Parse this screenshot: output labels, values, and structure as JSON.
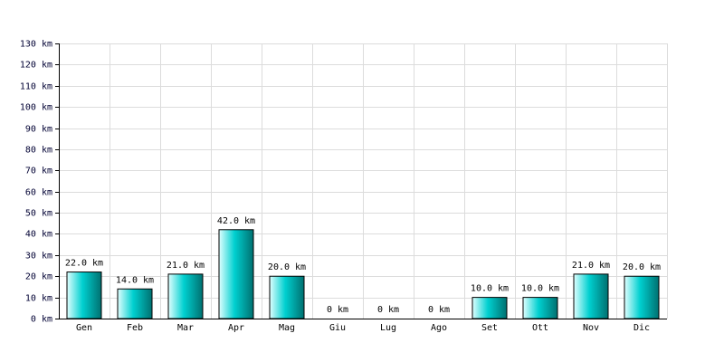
{
  "chart_data": {
    "type": "bar",
    "categories": [
      "Gen",
      "Feb",
      "Mar",
      "Apr",
      "Mag",
      "Giu",
      "Lug",
      "Ago",
      "Set",
      "Ott",
      "Nov",
      "Dic"
    ],
    "values": [
      22,
      14,
      21,
      42,
      20,
      0,
      0,
      0,
      10,
      10,
      21,
      20
    ],
    "value_labels": [
      "22.0 km",
      "14.0 km",
      "21.0 km",
      "42.0 km",
      "20.0 km",
      "0 km",
      "0 km",
      "0 km",
      "10.0 km",
      "10.0 km",
      "21.0 km",
      "20.0 km"
    ],
    "color": "#00d0d0",
    "ylim": [
      0,
      130
    ],
    "yticks": [
      {
        "value": 0,
        "label": "0 km"
      },
      {
        "value": 10,
        "label": "10 km"
      },
      {
        "value": 20,
        "label": "20 km"
      },
      {
        "value": 30,
        "label": "30 km"
      },
      {
        "value": 40,
        "label": "40 km"
      },
      {
        "value": 50,
        "label": "50 km"
      },
      {
        "value": 60,
        "label": "60 km"
      },
      {
        "value": 70,
        "label": "70 km"
      },
      {
        "value": 80,
        "label": "80 km"
      },
      {
        "value": 90,
        "label": "90 km"
      },
      {
        "value": 100,
        "label": "100 km"
      },
      {
        "value": 110,
        "label": "110 km"
      },
      {
        "value": 120,
        "label": "120 km"
      },
      {
        "value": 130,
        "label": "130 km"
      }
    ],
    "grid": true
  }
}
